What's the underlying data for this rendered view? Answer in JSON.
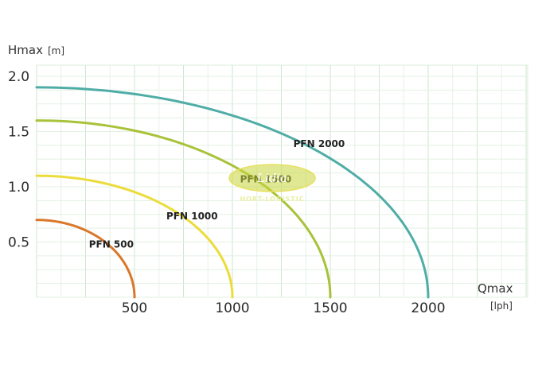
{
  "chart_data": {
    "type": "line",
    "title": "",
    "ylabel": "Hmax",
    "ylabel_unit": "[m]",
    "xlabel": "Qmax",
    "xlabel_unit": "[lph]",
    "xlim": [
      0,
      2500
    ],
    "ylim": [
      0,
      2.0
    ],
    "x_ticks": [
      500,
      1000,
      1500,
      2000
    ],
    "x_tick_labels": [
      "500",
      "1000",
      "1500",
      "2000"
    ],
    "y_ticks": [
      0.5,
      1.0,
      1.5,
      2.0
    ],
    "y_tick_labels": [
      "0.5",
      "1.0",
      "1.5",
      "2.0"
    ],
    "grid": true,
    "legend": "none",
    "series": [
      {
        "name": "PFN 500",
        "color": "#d9772a",
        "max_flow": 500,
        "max_head": 0.7,
        "x": [
          0,
          100,
          200,
          300,
          400,
          450,
          500
        ],
        "y": [
          0.7,
          0.68,
          0.62,
          0.52,
          0.37,
          0.24,
          0.0
        ]
      },
      {
        "name": "PFN 1000",
        "color": "#ecdc3a",
        "max_flow": 1000,
        "max_head": 1.1,
        "x": [
          0,
          200,
          400,
          600,
          800,
          900,
          1000
        ],
        "y": [
          1.1,
          1.07,
          0.98,
          0.82,
          0.58,
          0.4,
          0.0
        ]
      },
      {
        "name": "PFN 1500",
        "color": "#a8c23a",
        "max_flow": 1500,
        "max_head": 1.6,
        "x": [
          0,
          300,
          600,
          900,
          1200,
          1350,
          1500
        ],
        "y": [
          1.6,
          1.56,
          1.43,
          1.2,
          0.85,
          0.58,
          0.0
        ]
      },
      {
        "name": "PFN 2000",
        "color": "#4fada6",
        "max_flow": 2000,
        "max_head": 1.9,
        "x": [
          0,
          400,
          800,
          1200,
          1600,
          1800,
          2000
        ],
        "y": [
          1.9,
          1.86,
          1.7,
          1.42,
          1.0,
          0.68,
          0.0
        ]
      }
    ]
  },
  "watermark": {
    "logo_text": "Lidia",
    "sub_text": "HORT-LOGISTIC"
  }
}
